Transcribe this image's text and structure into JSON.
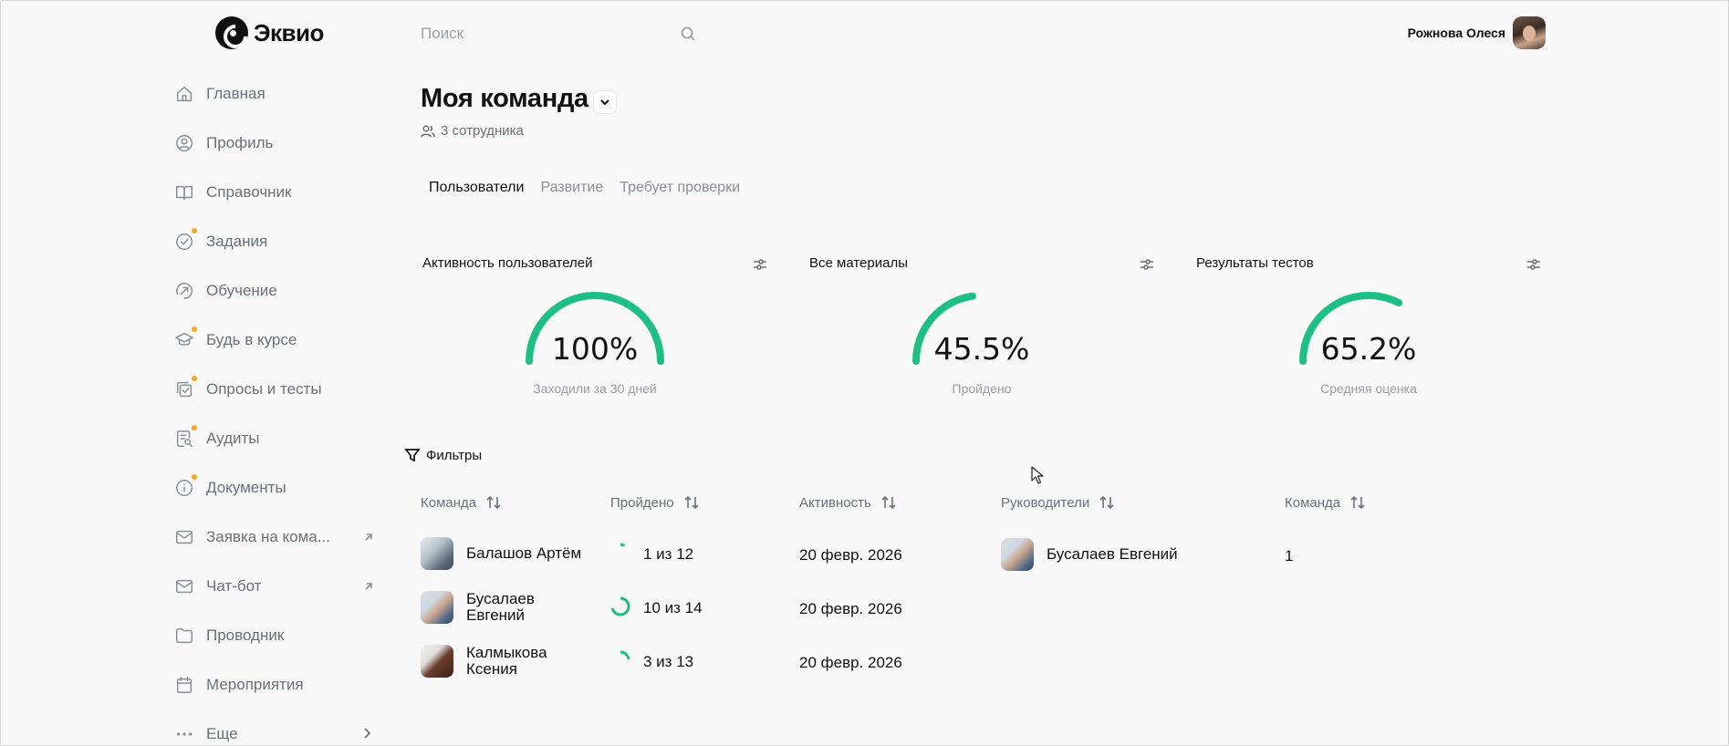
{
  "app": {
    "name": "Эквио"
  },
  "sidebar": {
    "items": [
      {
        "label": "Главная",
        "icon": "home-icon",
        "dot": false,
        "external": false
      },
      {
        "label": "Профиль",
        "icon": "profile-icon",
        "dot": false,
        "external": false
      },
      {
        "label": "Справочник",
        "icon": "book-icon",
        "dot": false,
        "external": false
      },
      {
        "label": "Задания",
        "icon": "check-circle-icon",
        "dot": true,
        "external": false
      },
      {
        "label": "Обучение",
        "icon": "learning-icon",
        "dot": false,
        "external": false
      },
      {
        "label": "Будь в курсе",
        "icon": "graduation-cap-icon",
        "dot": true,
        "external": false
      },
      {
        "label": "Опросы и тесты",
        "icon": "survey-icon",
        "dot": true,
        "external": false
      },
      {
        "label": "Аудиты",
        "icon": "audit-icon",
        "dot": true,
        "external": false
      },
      {
        "label": "Документы",
        "icon": "info-icon",
        "dot": true,
        "external": false
      },
      {
        "label": "Заявка на кома...",
        "icon": "mail-icon",
        "dot": false,
        "external": true
      },
      {
        "label": "Чат-бот",
        "icon": "chat-icon",
        "dot": false,
        "external": true
      },
      {
        "label": "Проводник",
        "icon": "folder-icon",
        "dot": false,
        "external": false
      },
      {
        "label": "Мероприятия",
        "icon": "calendar-icon",
        "dot": false,
        "external": false
      },
      {
        "label": "Еще",
        "icon": "more-icon",
        "dot": false,
        "external": false,
        "chevron": true
      }
    ]
  },
  "search": {
    "placeholder": "Поиск",
    "value": ""
  },
  "user": {
    "name": "Рожнова Олеся"
  },
  "page": {
    "title": "Моя команда",
    "members": "3 сотрудника",
    "tabs": [
      {
        "label": "Пользователи",
        "active": true
      },
      {
        "label": "Развитие",
        "active": false
      },
      {
        "label": "Требует проверки",
        "active": false
      }
    ]
  },
  "cards": [
    {
      "title": "Активность пользователей",
      "value": "100%",
      "fraction": 1.0,
      "subtitle": "Заходили за 30 дней"
    },
    {
      "title": "Все материалы",
      "value": "45.5%",
      "fraction": 0.455,
      "subtitle": "Пройдено"
    },
    {
      "title": "Результаты тестов",
      "value": "65.2%",
      "fraction": 0.652,
      "subtitle": "Средняя оценка"
    }
  ],
  "filters": {
    "label": "Фильтры"
  },
  "table": {
    "columns": [
      "Команда",
      "Пройдено",
      "Активность",
      "Руководители",
      "Команда"
    ],
    "rows": [
      {
        "name_line1": "Балашов Артём",
        "name_line2": "",
        "done": "1 из 12",
        "done_fraction": 0.083,
        "activity": "20 февр. 2026"
      },
      {
        "name_line1": "Бусалаев",
        "name_line2": "Евгений",
        "done": "10 из 14",
        "done_fraction": 0.714,
        "activity": "20 февр. 2026"
      },
      {
        "name_line1": "Калмыкова",
        "name_line2": "Ксения",
        "done": "3 из 13",
        "done_fraction": 0.231,
        "activity": "20 февр. 2026"
      }
    ],
    "manager": {
      "name": "Бусалаев Евгений",
      "team": "1"
    }
  },
  "colors": {
    "accent": "#1dbf84",
    "muted": "#8a8f98",
    "dot": "#f5a623"
  }
}
